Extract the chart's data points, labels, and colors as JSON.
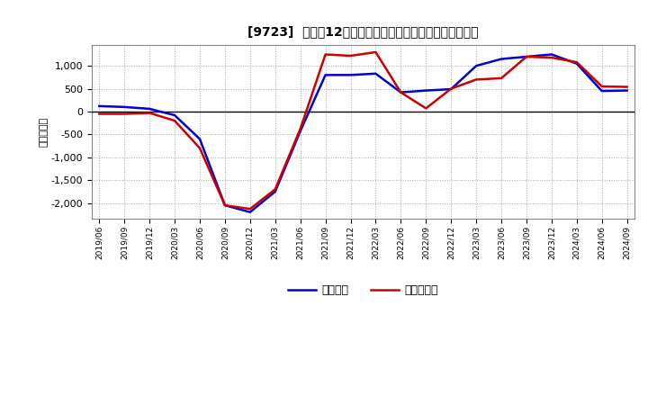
{
  "title": "[9723]  利益だ12か月移動合計の対前年同期増減額の推移",
  "ylabel": "（百万円）",
  "background_color": "#ffffff",
  "plot_bg_color": "#ffffff",
  "grid_color": "#aaaaaa",
  "ylim": [
    -2350,
    1450
  ],
  "yticks": [
    -2000,
    -1500,
    -1000,
    -500,
    0,
    500,
    1000
  ],
  "legend_labels": [
    "経常利益",
    "当期純利益"
  ],
  "line_colors": [
    "#0000cc",
    "#cc0000"
  ],
  "x_labels": [
    "2019/06",
    "2019/09",
    "2019/12",
    "2020/03",
    "2020/06",
    "2020/09",
    "2020/12",
    "2021/03",
    "2021/06",
    "2021/09",
    "2021/12",
    "2022/03",
    "2022/06",
    "2022/09",
    "2022/12",
    "2023/03",
    "2023/06",
    "2023/09",
    "2023/12",
    "2024/03",
    "2024/06",
    "2024/09"
  ],
  "keijo_rieki": [
    120,
    100,
    60,
    -80,
    -600,
    -2050,
    -2200,
    -1750,
    -430,
    800,
    800,
    830,
    420,
    460,
    490,
    1000,
    1150,
    1200,
    1250,
    1050,
    450,
    460
  ],
  "touki_junseki": [
    -50,
    -50,
    -30,
    -200,
    -800,
    -2050,
    -2130,
    -1700,
    -380,
    1250,
    1220,
    1300,
    420,
    70,
    500,
    700,
    730,
    1200,
    1180,
    1080,
    550,
    540
  ]
}
